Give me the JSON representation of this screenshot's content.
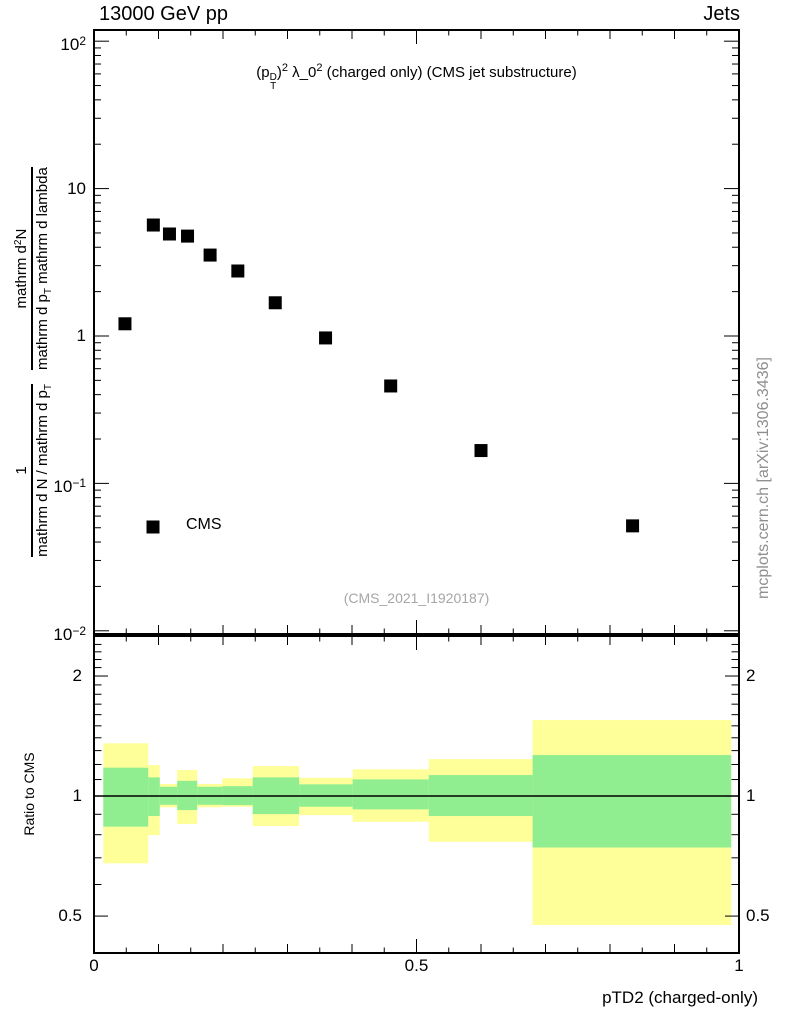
{
  "header": {
    "left": "13000 GeV pp",
    "right": "Jets"
  },
  "plot_title": {
    "parts": [
      {
        "t": "(p",
        "k": "n"
      },
      {
        "top": "D",
        "bot": "T",
        "k": "stack"
      },
      {
        "t": ")",
        "k": "n"
      },
      {
        "t": "2",
        "k": "sup"
      },
      {
        "t": " λ_0",
        "k": "n"
      },
      {
        "t": "2",
        "k": "sup"
      },
      {
        "t": " (charged only) (CMS jet substructure)",
        "k": "n"
      }
    ]
  },
  "main_y_label": {
    "frac1_num": "1",
    "frac1_den_pre": "mathrm d N / mathrm d p",
    "frac1_den_sub": "T",
    "frac2_num_pre": "mathrm d",
    "frac2_num_sup": "2",
    "frac2_num_post": "N",
    "frac2_den_pre": "mathrm d p",
    "frac2_den_sub": "T",
    "frac2_den_post": " mathrm d lambda"
  },
  "legend": {
    "entries": [
      {
        "label": "CMS",
        "marker": "filled-square",
        "color": "#000000"
      }
    ]
  },
  "watermark": "(CMS_2021_I1920187)",
  "side_note": "mcplots.cern.ch [arXiv:1306.3436]",
  "ratio_y_label": "Ratio to CMS",
  "x_axis": {
    "title": "pTD2 (charged-only)",
    "major_ticks": [
      {
        "v": 0,
        "label": "0"
      },
      {
        "v": 0.5,
        "label": "0.5"
      },
      {
        "v": 1,
        "label": "1"
      }
    ],
    "minor_step": 0.05
  },
  "chart_data": {
    "type": "scatter",
    "title": "(p_T^D)^2 λ_0^2 (charged only) (CMS jet substructure)",
    "xlabel": "pTD2 (charged-only)",
    "xlim": [
      0,
      1
    ],
    "top_panel": {
      "yscale": "log",
      "ylim": [
        0.00951,
        119.1
      ],
      "yticks": [
        {
          "v": 100,
          "base": "10",
          "exp": "2"
        },
        {
          "v": 10,
          "base": "10",
          "exp": ""
        },
        {
          "v": 1,
          "base": "1",
          "exp": ""
        },
        {
          "v": 0.1,
          "base": "10",
          "exp": "−1"
        },
        {
          "v": 0.01,
          "base": "10",
          "exp": "−2"
        }
      ],
      "series": [
        {
          "name": "CMS",
          "marker": "filled-square",
          "color": "#000000",
          "x": [
            0.048,
            0.092,
            0.117,
            0.145,
            0.18,
            0.223,
            0.281,
            0.359,
            0.46,
            0.6,
            0.835
          ],
          "y": [
            1.21,
            5.66,
            4.92,
            4.76,
            3.54,
            2.76,
            1.68,
            0.97,
            0.458,
            0.167,
            0.0515
          ]
        }
      ]
    },
    "ratio_panel": {
      "ylabel": "Ratio to CMS",
      "yscale": "log",
      "ylim": [
        0.404,
        2.52
      ],
      "yticks": [
        {
          "v": 2,
          "label": "2"
        },
        {
          "v": 1,
          "label": "1"
        },
        {
          "v": 0.5,
          "label": "0.5"
        }
      ],
      "reference_line": 1.0,
      "bin_edges": [
        0.0144,
        0.0841,
        0.102,
        0.129,
        0.16,
        0.199,
        0.246,
        0.318,
        0.401,
        0.519,
        0.68,
        0.988
      ],
      "outer_band_color": "#ffff99",
      "inner_band_color": "#90ee90",
      "outer_band": [
        [
          1.356,
          0.678
        ],
        [
          1.196,
          0.798
        ],
        [
          1.072,
          0.937
        ],
        [
          1.162,
          0.851
        ],
        [
          1.072,
          0.937
        ],
        [
          1.108,
          0.94
        ],
        [
          1.189,
          0.841
        ],
        [
          1.111,
          0.896
        ],
        [
          1.167,
          0.862
        ],
        [
          1.238,
          0.768
        ],
        [
          1.551,
          0.475
        ]
      ],
      "inner_band": [
        [
          1.178,
          0.838
        ],
        [
          1.114,
          0.891
        ],
        [
          1.055,
          0.951
        ],
        [
          1.092,
          0.922
        ],
        [
          1.055,
          0.951
        ],
        [
          1.059,
          0.949
        ],
        [
          1.114,
          0.901
        ],
        [
          1.07,
          0.94
        ],
        [
          1.101,
          0.926
        ],
        [
          1.129,
          0.891
        ],
        [
          1.267,
          0.743
        ]
      ]
    }
  }
}
